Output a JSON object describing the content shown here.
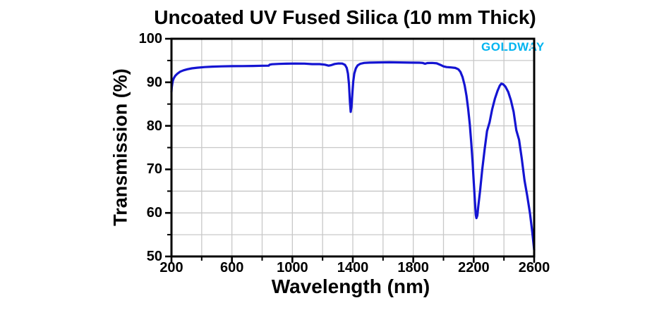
{
  "title": "Uncoated UV Fused Silica (10 mm Thick)",
  "colors": {
    "curve": "#1414d2",
    "grid": "#c8c8c8",
    "axis": "#000000",
    "watermark": "#00b4f0",
    "watermark_chevron": "#e3e3e3",
    "background": "#ffffff"
  },
  "icons": {
    "watermark_chevron": "›"
  },
  "chart_data": {
    "type": "line",
    "title": "Uncoated UV Fused Silica (10 mm Thick)",
    "xlabel": "Wavelength (nm)",
    "ylabel": "Transmission (%)",
    "xlim": [
      200,
      2600
    ],
    "ylim": [
      50,
      100
    ],
    "grid": true,
    "grid_spacing": {
      "x": 200,
      "y": 5
    },
    "legend_position": "none",
    "x_major_ticks": [
      200,
      600,
      1000,
      1400,
      1800,
      2200,
      2600
    ],
    "x_tick_labels": [
      "200",
      "600",
      "1000",
      "1400",
      "1800",
      "2200",
      "2600"
    ],
    "x_minor_ticks": [
      400,
      800,
      1200,
      1600,
      2000,
      2400
    ],
    "y_major_ticks": [
      50,
      60,
      70,
      80,
      90,
      100
    ],
    "y_tick_labels": [
      "50",
      "60",
      "70",
      "80",
      "90",
      "100"
    ],
    "y_minor_ticks": [
      55,
      65,
      75,
      85,
      95
    ],
    "annotations": [
      {
        "text": "GOLDWAY",
        "color": "#00b4f0",
        "position": "top-right-inside"
      }
    ],
    "series": [
      {
        "name": "Transmission",
        "color": "#1414d2",
        "points": [
          [
            200,
            87.8
          ],
          [
            202,
            88.8
          ],
          [
            205,
            89.6
          ],
          [
            209,
            90.3
          ],
          [
            215,
            90.9
          ],
          [
            225,
            91.5
          ],
          [
            240,
            92.0
          ],
          [
            258,
            92.45
          ],
          [
            280,
            92.75
          ],
          [
            305,
            93.0
          ],
          [
            335,
            93.2
          ],
          [
            370,
            93.35
          ],
          [
            420,
            93.5
          ],
          [
            470,
            93.6
          ],
          [
            530,
            93.65
          ],
          [
            600,
            93.7
          ],
          [
            670,
            93.72
          ],
          [
            740,
            93.76
          ],
          [
            800,
            93.8
          ],
          [
            843,
            93.82
          ],
          [
            850,
            94.05
          ],
          [
            865,
            94.15
          ],
          [
            910,
            94.22
          ],
          [
            960,
            94.27
          ],
          [
            1020,
            94.3
          ],
          [
            1080,
            94.28
          ],
          [
            1130,
            94.18
          ],
          [
            1180,
            94.18
          ],
          [
            1215,
            94.05
          ],
          [
            1240,
            93.82
          ],
          [
            1258,
            93.95
          ],
          [
            1280,
            94.2
          ],
          [
            1305,
            94.32
          ],
          [
            1330,
            94.3
          ],
          [
            1348,
            94.0
          ],
          [
            1360,
            93.3
          ],
          [
            1368,
            92.0
          ],
          [
            1375,
            89.5
          ],
          [
            1381,
            85.5
          ],
          [
            1386,
            83.2
          ],
          [
            1391,
            84.3
          ],
          [
            1397,
            87.5
          ],
          [
            1403,
            90.2
          ],
          [
            1410,
            92.0
          ],
          [
            1420,
            93.2
          ],
          [
            1432,
            93.9
          ],
          [
            1450,
            94.25
          ],
          [
            1475,
            94.45
          ],
          [
            1510,
            94.52
          ],
          [
            1570,
            94.57
          ],
          [
            1640,
            94.6
          ],
          [
            1710,
            94.57
          ],
          [
            1780,
            94.52
          ],
          [
            1840,
            94.5
          ],
          [
            1862,
            94.45
          ],
          [
            1878,
            94.25
          ],
          [
            1893,
            94.42
          ],
          [
            1925,
            94.45
          ],
          [
            1955,
            94.35
          ],
          [
            1980,
            94.0
          ],
          [
            2000,
            93.65
          ],
          [
            2020,
            93.5
          ],
          [
            2050,
            93.42
          ],
          [
            2078,
            93.3
          ],
          [
            2098,
            93.0
          ],
          [
            2112,
            92.4
          ],
          [
            2126,
            91.2
          ],
          [
            2140,
            89.3
          ],
          [
            2152,
            86.9
          ],
          [
            2163,
            84.0
          ],
          [
            2174,
            80.3
          ],
          [
            2184,
            76.0
          ],
          [
            2193,
            71.5
          ],
          [
            2201,
            66.8
          ],
          [
            2208,
            62.8
          ],
          [
            2214,
            59.5
          ],
          [
            2218,
            58.8
          ],
          [
            2224,
            59.4
          ],
          [
            2230,
            61.5
          ],
          [
            2242,
            65.0
          ],
          [
            2256,
            69.8
          ],
          [
            2272,
            74.6
          ],
          [
            2288,
            78.8
          ],
          [
            2305,
            80.8
          ],
          [
            2322,
            83.8
          ],
          [
            2340,
            86.2
          ],
          [
            2357,
            88.0
          ],
          [
            2372,
            89.2
          ],
          [
            2383,
            89.7
          ],
          [
            2395,
            89.55
          ],
          [
            2410,
            89.0
          ],
          [
            2428,
            87.8
          ],
          [
            2446,
            85.9
          ],
          [
            2464,
            83.2
          ],
          [
            2482,
            79.0
          ],
          [
            2500,
            76.8
          ],
          [
            2518,
            72.5
          ],
          [
            2536,
            67.5
          ],
          [
            2554,
            64.0
          ],
          [
            2572,
            60.0
          ],
          [
            2588,
            55.5
          ],
          [
            2600,
            51.5
          ]
        ]
      }
    ]
  }
}
